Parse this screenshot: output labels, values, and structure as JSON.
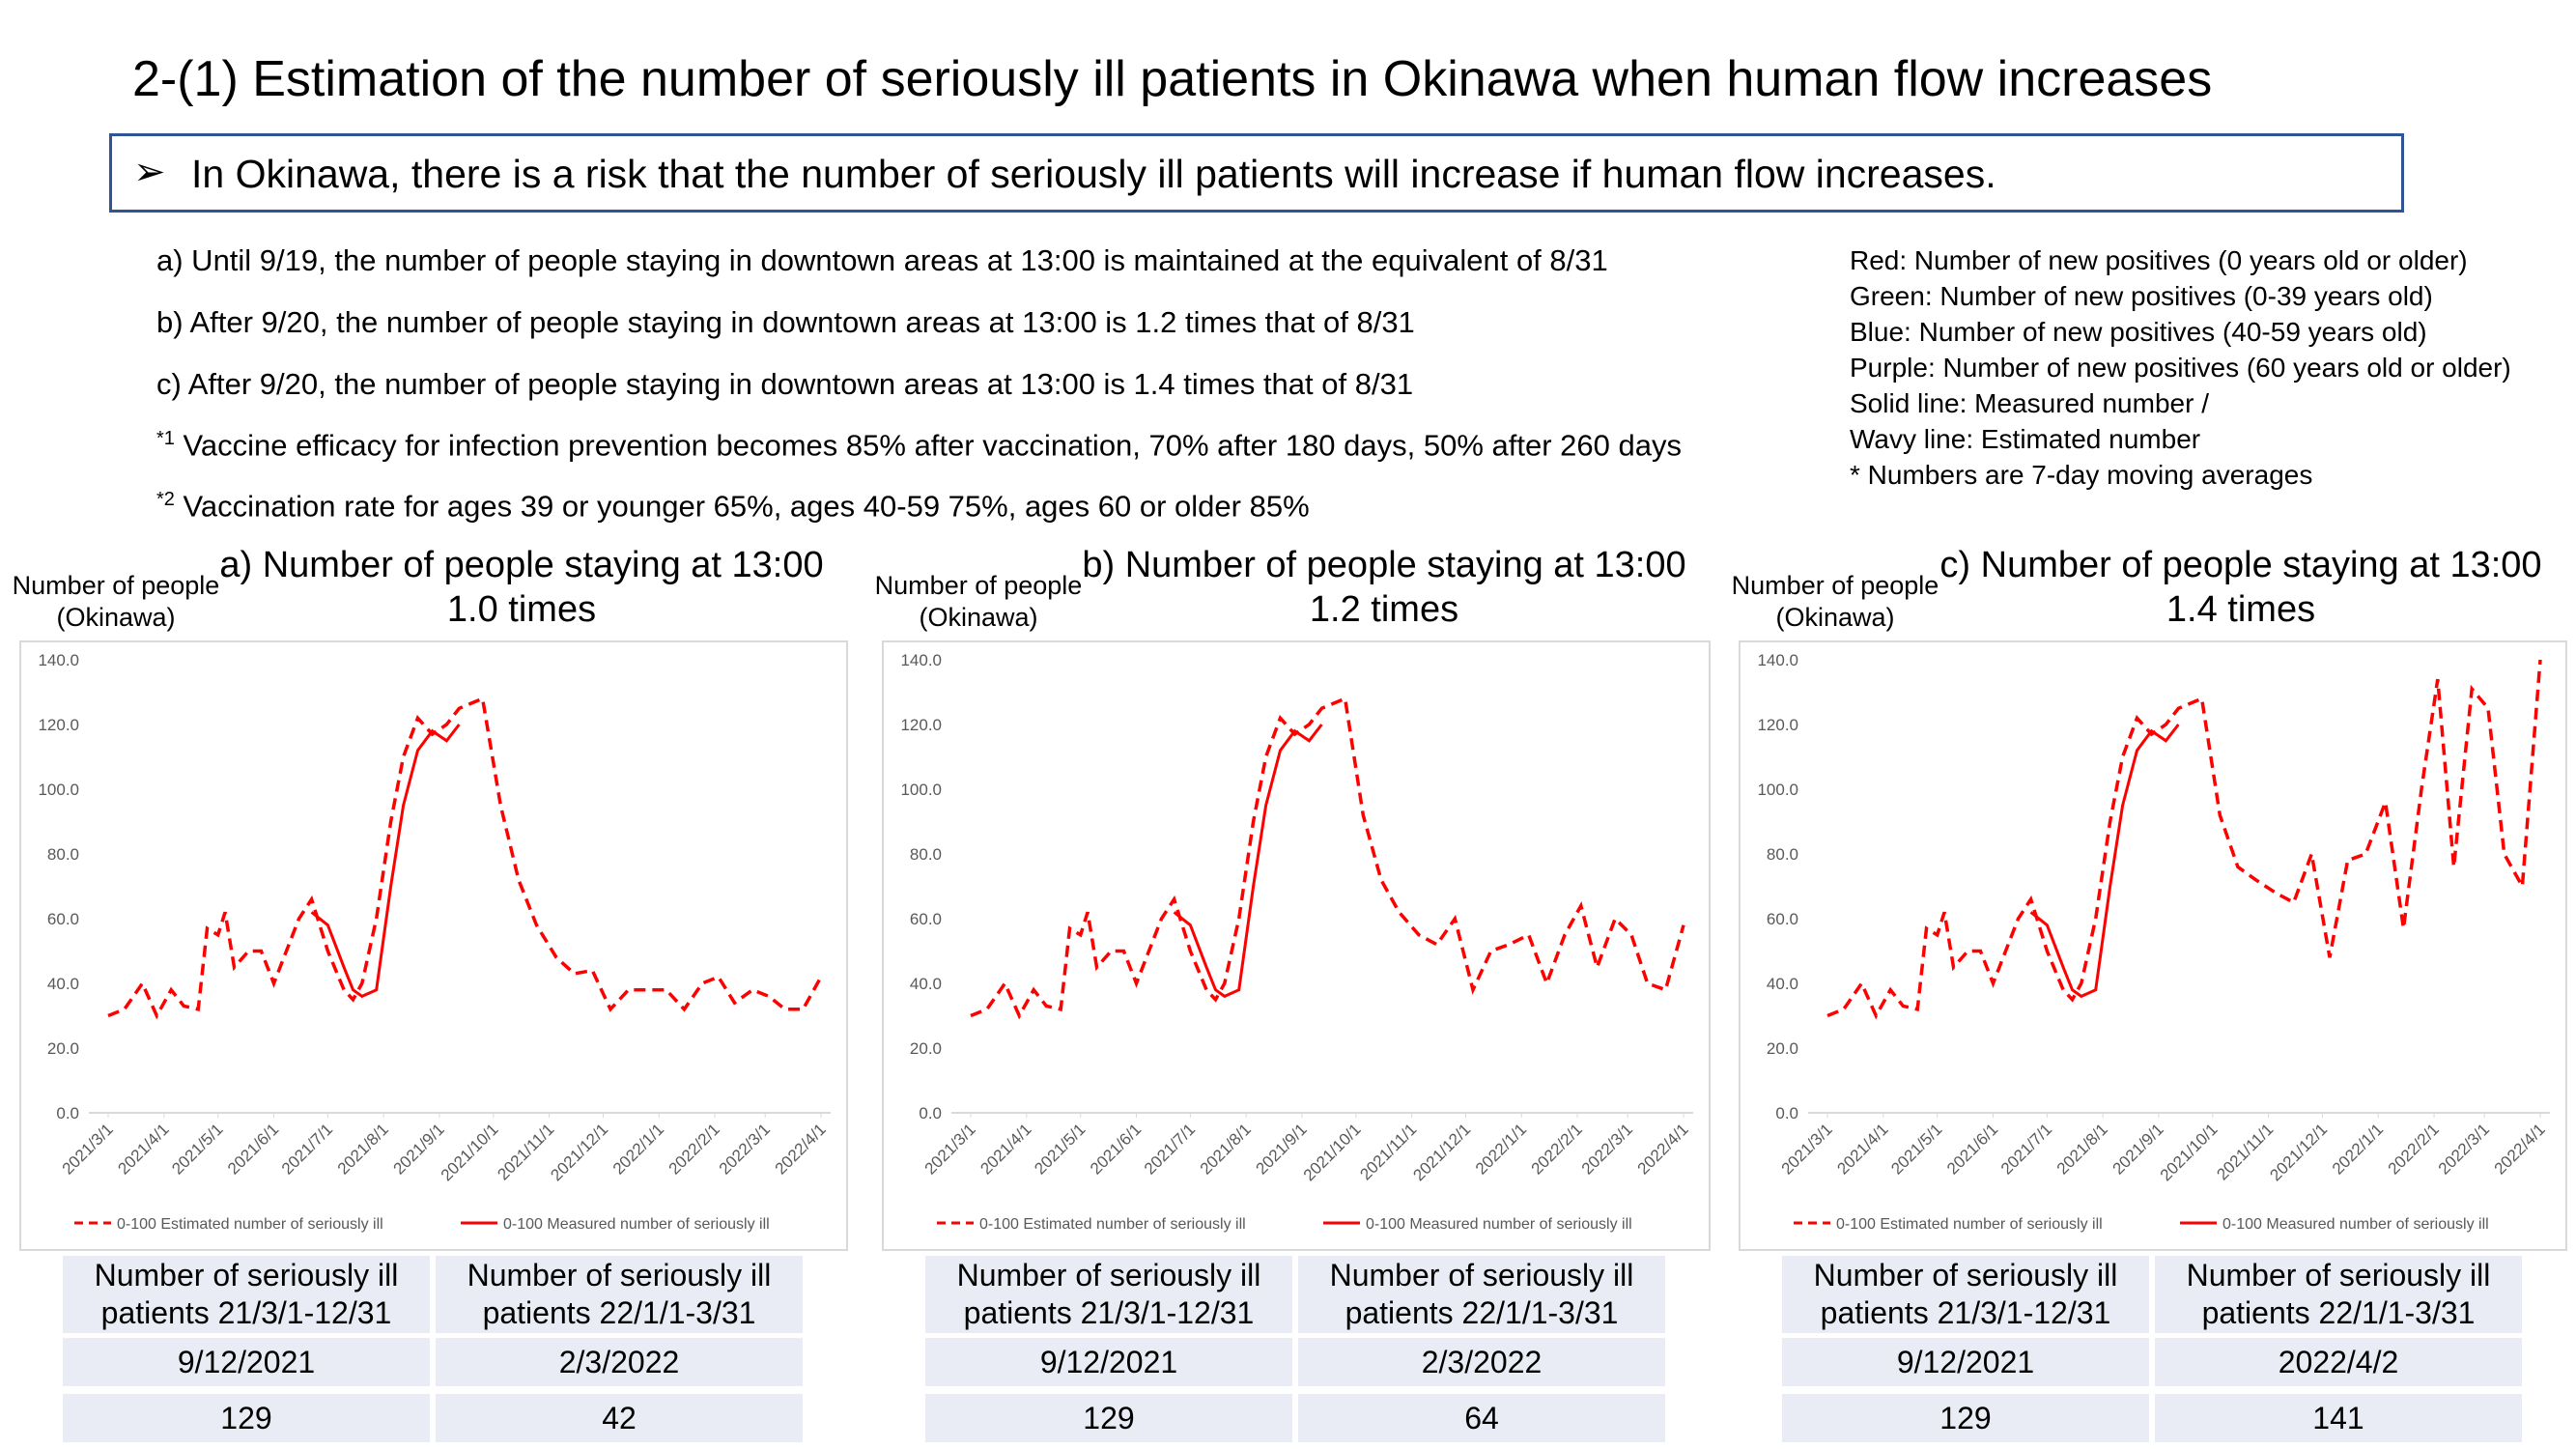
{
  "title": "2-(1) Estimation of the number of seriously ill patients in Okinawa when human flow increases",
  "callout": "In Okinawa, there is a risk that the number of seriously ill patients will increase if human flow increases.",
  "notes": [
    {
      "text": "a) Until 9/19, the number of people staying in downtown areas at 13:00 is maintained at the equivalent of 8/31"
    },
    {
      "text": "b) After 9/20, the number of people staying in downtown areas at 13:00 is 1.2 times that of 8/31"
    },
    {
      "text": "c) After 9/20, the number of people staying in downtown areas at 13:00 is 1.4 times that of 8/31"
    },
    {
      "mark": "*1",
      "text": " Vaccine efficacy for infection prevention becomes 85% after vaccination, 70% after 180 days, 50% after 260 days"
    },
    {
      "mark": "*2",
      "text": " Vaccination rate for ages 39 or younger 65%, ages 40-59 75%, ages 60 or older 85%"
    }
  ],
  "legend_text": [
    "Red: Number of new positives (0 years old or older)",
    "Green: Number of new positives (0-39 years old)",
    "Blue: Number of new positives (40-59 years old)",
    "Purple: Number of new positives (60 years old or older)",
    "Solid line: Measured number /",
    "Wavy line: Estimated number",
    "* Numbers are 7-day moving averages"
  ],
  "tables": [
    {
      "header": [
        "Number of seriously ill patients 21/3/1-12/31",
        "Number of seriously ill patients 22/1/1-3/31"
      ],
      "rows": [
        [
          "9/12/2021",
          "2/3/2022"
        ],
        [
          "129",
          "42"
        ]
      ]
    },
    {
      "header": [
        "Number of seriously ill patients 21/3/1-12/31",
        "Number of seriously ill patients 22/1/1-3/31"
      ],
      "rows": [
        [
          "9/12/2021",
          "2/3/2022"
        ],
        [
          "129",
          "64"
        ]
      ]
    },
    {
      "header": [
        "Number of seriously ill patients 21/3/1-12/31",
        "Number of seriously ill patients 22/1/1-3/31"
      ],
      "rows": [
        [
          "9/12/2021",
          "2022/4/2"
        ],
        [
          "129",
          "141"
        ]
      ]
    }
  ],
  "chart_data": [
    {
      "type": "line",
      "title": "a) Number of people staying at 13:00 1.0 times",
      "y_label": "Number of people (Okinawa)",
      "x": [
        "2021/3/1",
        "2021/3/10",
        "2021/3/20",
        "2021/3/28",
        "2021/4/5",
        "2021/4/12",
        "2021/4/20",
        "2021/4/25",
        "2021/5/1",
        "2021/5/5",
        "2021/5/10",
        "2021/5/18",
        "2021/5/25",
        "2021/6/1",
        "2021/6/8",
        "2021/6/15",
        "2021/6/22",
        "2021/7/1",
        "2021/7/10",
        "2021/7/15",
        "2021/7/20",
        "2021/7/28",
        "2021/8/5",
        "2021/8/12",
        "2021/8/20",
        "2021/8/28",
        "2021/9/5",
        "2021/9/12",
        "2021/9/25",
        "2021/10/5",
        "2021/10/15",
        "2021/10/25",
        "2021/11/5",
        "2021/11/15",
        "2021/11/25",
        "2021/12/5",
        "2021/12/15",
        "2021/12/25",
        "2022/1/5",
        "2022/1/15",
        "2022/1/25",
        "2022/2/3",
        "2022/2/12",
        "2022/2/22",
        "2022/3/3",
        "2022/3/12",
        "2022/3/22",
        "2022/4/1"
      ],
      "series": [
        {
          "name": "0-100 Estimated number of seriously ill",
          "color": "#ff0000",
          "dashed": true,
          "values": [
            30,
            32,
            40,
            30,
            38,
            33,
            32,
            57,
            55,
            62,
            45,
            50,
            50,
            40,
            50,
            60,
            66,
            50,
            38,
            35,
            40,
            60,
            90,
            110,
            122,
            117,
            120,
            125,
            128,
            95,
            72,
            58,
            48,
            43,
            44,
            32,
            38,
            38,
            38,
            32,
            40,
            42,
            34,
            38,
            36,
            32,
            32,
            42
          ]
        },
        {
          "name": "0-100 Measured number of seriously ill",
          "color": "#ff0000",
          "dashed": false,
          "values": [
            null,
            null,
            null,
            null,
            null,
            null,
            null,
            null,
            null,
            null,
            null,
            null,
            null,
            null,
            null,
            null,
            62,
            58,
            45,
            38,
            36,
            38,
            70,
            95,
            112,
            118,
            115,
            120,
            null,
            null,
            null,
            null,
            null,
            null,
            null,
            null,
            null,
            null,
            null,
            null,
            null,
            null,
            null,
            null,
            null,
            null,
            null,
            null
          ]
        }
      ],
      "xlim": [
        "2021/3/1",
        "2022/4/1"
      ],
      "xticks": [
        "2021/3/1",
        "2021/4/1",
        "2021/5/1",
        "2021/6/1",
        "2021/7/1",
        "2021/8/1",
        "2021/9/1",
        "2021/10/1",
        "2021/11/1",
        "2021/12/1",
        "2022/1/1",
        "2022/2/1",
        "2022/3/1",
        "2022/4/1"
      ],
      "ylim": [
        0,
        140
      ],
      "yticks": [
        {
          "value": 0,
          "label": "0.0"
        },
        {
          "value": 20,
          "label": "20.0"
        },
        {
          "value": 40,
          "label": "40.0"
        },
        {
          "value": 60,
          "label": "60.0"
        },
        {
          "value": 80,
          "label": "80.0"
        },
        {
          "value": 100,
          "label": "100.0"
        },
        {
          "value": 120,
          "label": "120.0"
        },
        {
          "value": 140,
          "label": "140.0"
        }
      ],
      "grid": false
    },
    {
      "type": "line",
      "title": "b) Number of people staying at 13:00 1.2 times",
      "y_label": "Number of people (Okinawa)",
      "x": [
        "2021/3/1",
        "2021/3/10",
        "2021/3/20",
        "2021/3/28",
        "2021/4/5",
        "2021/4/12",
        "2021/4/20",
        "2021/4/25",
        "2021/5/1",
        "2021/5/5",
        "2021/5/10",
        "2021/5/18",
        "2021/5/25",
        "2021/6/1",
        "2021/6/8",
        "2021/6/15",
        "2021/6/22",
        "2021/7/1",
        "2021/7/10",
        "2021/7/15",
        "2021/7/20",
        "2021/7/28",
        "2021/8/5",
        "2021/8/12",
        "2021/8/20",
        "2021/8/28",
        "2021/9/5",
        "2021/9/12",
        "2021/9/25",
        "2021/10/5",
        "2021/10/15",
        "2021/10/25",
        "2021/11/5",
        "2021/11/15",
        "2021/11/25",
        "2021/12/5",
        "2021/12/15",
        "2021/12/25",
        "2022/1/5",
        "2022/1/15",
        "2022/1/25",
        "2022/2/3",
        "2022/2/12",
        "2022/2/22",
        "2022/3/3",
        "2022/3/12",
        "2022/3/22",
        "2022/4/1"
      ],
      "series": [
        {
          "name": "0-100 Estimated number of seriously ill",
          "color": "#ff0000",
          "dashed": true,
          "values": [
            30,
            32,
            40,
            30,
            38,
            33,
            32,
            57,
            55,
            62,
            45,
            50,
            50,
            40,
            50,
            60,
            66,
            50,
            38,
            35,
            40,
            60,
            90,
            110,
            122,
            117,
            120,
            125,
            128,
            92,
            72,
            62,
            55,
            52,
            60,
            38,
            50,
            52,
            55,
            40,
            55,
            64,
            45,
            60,
            55,
            40,
            38,
            58
          ]
        },
        {
          "name": "0-100 Measured number of seriously ill",
          "color": "#ff0000",
          "dashed": false,
          "values": [
            null,
            null,
            null,
            null,
            null,
            null,
            null,
            null,
            null,
            null,
            null,
            null,
            null,
            null,
            null,
            null,
            62,
            58,
            45,
            38,
            36,
            38,
            70,
            95,
            112,
            118,
            115,
            120,
            null,
            null,
            null,
            null,
            null,
            null,
            null,
            null,
            null,
            null,
            null,
            null,
            null,
            null,
            null,
            null,
            null,
            null,
            null,
            null
          ]
        }
      ],
      "xlim": [
        "2021/3/1",
        "2022/4/1"
      ],
      "xticks": [
        "2021/3/1",
        "2021/4/1",
        "2021/5/1",
        "2021/6/1",
        "2021/7/1",
        "2021/8/1",
        "2021/9/1",
        "2021/10/1",
        "2021/11/1",
        "2021/12/1",
        "2022/1/1",
        "2022/2/1",
        "2022/3/1",
        "2022/4/1"
      ],
      "ylim": [
        0,
        140
      ],
      "yticks": [
        {
          "value": 0,
          "label": "0.0"
        },
        {
          "value": 20,
          "label": "20.0"
        },
        {
          "value": 40,
          "label": "40.0"
        },
        {
          "value": 60,
          "label": "60.0"
        },
        {
          "value": 80,
          "label": "80.0"
        },
        {
          "value": 100,
          "label": "100.0"
        },
        {
          "value": 120,
          "label": "120.0"
        },
        {
          "value": 140,
          "label": "140.0"
        }
      ],
      "grid": false
    },
    {
      "type": "line",
      "title": "c) Number of people staying at 13:00 1.4 times",
      "y_label": "Number of people (Okinawa)",
      "x": [
        "2021/3/1",
        "2021/3/10",
        "2021/3/20",
        "2021/3/28",
        "2021/4/5",
        "2021/4/12",
        "2021/4/20",
        "2021/4/25",
        "2021/5/1",
        "2021/5/5",
        "2021/5/10",
        "2021/5/18",
        "2021/5/25",
        "2021/6/1",
        "2021/6/8",
        "2021/6/15",
        "2021/6/22",
        "2021/7/1",
        "2021/7/10",
        "2021/7/15",
        "2021/7/20",
        "2021/7/28",
        "2021/8/5",
        "2021/8/12",
        "2021/8/20",
        "2021/8/28",
        "2021/9/5",
        "2021/9/12",
        "2021/9/25",
        "2021/10/5",
        "2021/10/15",
        "2021/10/25",
        "2021/11/5",
        "2021/11/15",
        "2021/11/25",
        "2021/12/5",
        "2021/12/15",
        "2021/12/25",
        "2022/1/5",
        "2022/1/15",
        "2022/1/25",
        "2022/2/3",
        "2022/2/12",
        "2022/2/22",
        "2022/3/3",
        "2022/3/12",
        "2022/3/22",
        "2022/4/1"
      ],
      "series": [
        {
          "name": "0-100 Estimated number of seriously ill",
          "color": "#ff0000",
          "dashed": true,
          "values": [
            30,
            32,
            40,
            30,
            38,
            33,
            32,
            57,
            55,
            62,
            45,
            50,
            50,
            40,
            50,
            60,
            66,
            50,
            38,
            35,
            40,
            60,
            90,
            110,
            122,
            117,
            120,
            125,
            128,
            92,
            76,
            72,
            68,
            65,
            80,
            48,
            78,
            80,
            96,
            57,
            100,
            134,
            76,
            131,
            125,
            80,
            70,
            140
          ]
        },
        {
          "name": "0-100 Measured number of seriously ill",
          "color": "#ff0000",
          "dashed": false,
          "values": [
            null,
            null,
            null,
            null,
            null,
            null,
            null,
            null,
            null,
            null,
            null,
            null,
            null,
            null,
            null,
            null,
            62,
            58,
            45,
            38,
            36,
            38,
            70,
            95,
            112,
            118,
            115,
            120,
            null,
            null,
            null,
            null,
            null,
            null,
            null,
            null,
            null,
            null,
            null,
            null,
            null,
            null,
            null,
            null,
            null,
            null,
            null,
            null
          ]
        }
      ],
      "xlim": [
        "2021/3/1",
        "2022/4/1"
      ],
      "xticks": [
        "2021/3/1",
        "2021/4/1",
        "2021/5/1",
        "2021/6/1",
        "2021/7/1",
        "2021/8/1",
        "2021/9/1",
        "2021/10/1",
        "2021/11/1",
        "2021/12/1",
        "2022/1/1",
        "2022/2/1",
        "2022/3/1",
        "2022/4/1"
      ],
      "ylim": [
        0,
        140
      ],
      "yticks": [
        {
          "value": 0,
          "label": "0.0"
        },
        {
          "value": 20,
          "label": "20.0"
        },
        {
          "value": 40,
          "label": "40.0"
        },
        {
          "value": 60,
          "label": "60.0"
        },
        {
          "value": 80,
          "label": "80.0"
        },
        {
          "value": 100,
          "label": "100.0"
        },
        {
          "value": 120,
          "label": "120.0"
        },
        {
          "value": 140,
          "label": "140.0"
        }
      ],
      "grid": false
    }
  ]
}
